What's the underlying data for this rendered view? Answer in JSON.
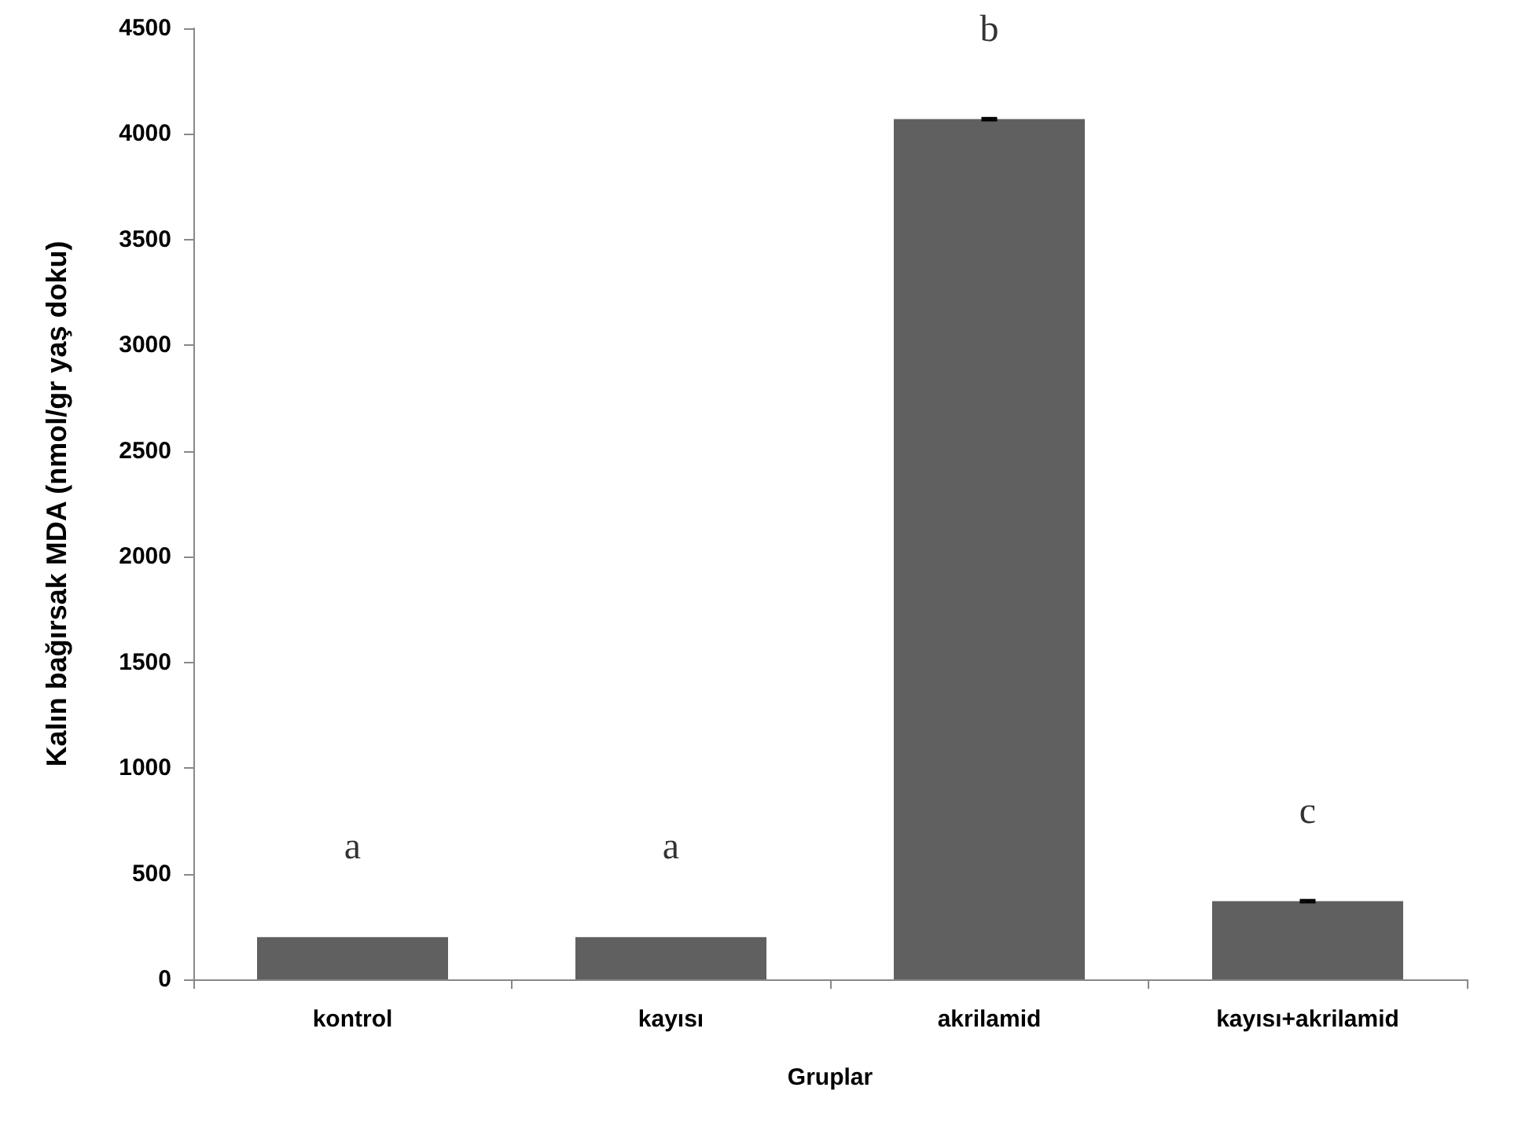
{
  "chart_data": {
    "type": "bar",
    "xlabel": "Gruplar",
    "ylabel": "Kalın bağırsak MDA (nmol/gr yaş doku)",
    "categories": [
      "kontrol",
      "kayısı",
      "akrilamid",
      "kayısı+akrilamid"
    ],
    "values": [
      200,
      200,
      4070,
      370
    ],
    "errors": [
      null,
      null,
      5,
      5
    ],
    "color": "#606060",
    "ylim": [
      0,
      4500
    ],
    "yticks": [
      0,
      500,
      1000,
      1500,
      2000,
      2500,
      3000,
      3500,
      4000,
      4500
    ],
    "grid": false,
    "annotations": [
      "a",
      "a",
      "b",
      "c"
    ]
  }
}
